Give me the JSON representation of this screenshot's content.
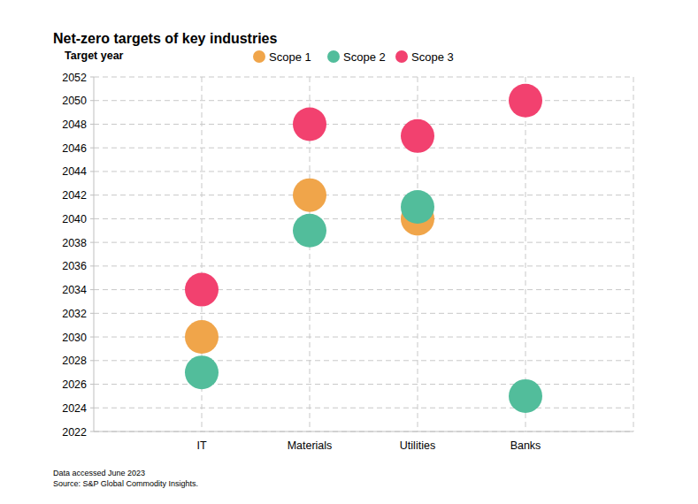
{
  "chart_data": {
    "type": "scatter",
    "title": "Net-zero targets of key industries",
    "y_label": "Target year",
    "notes": [
      "Data accessed June 2023",
      "Source: S&P Global Commodity Insights."
    ],
    "categories": [
      "IT",
      "Materials",
      "Utilities",
      "Banks"
    ],
    "series": [
      {
        "name": "Scope 1",
        "color": "#f0a54a",
        "values": [
          2030,
          2042,
          2040,
          null
        ]
      },
      {
        "name": "Scope 2",
        "color": "#52bd9b",
        "values": [
          2027,
          2039,
          2041,
          2025
        ]
      },
      {
        "name": "Scope 3",
        "color": "#f2416f",
        "values": [
          2034,
          2048,
          2047,
          2050
        ]
      }
    ],
    "ylim": [
      2022,
      2052
    ],
    "yticks": [
      2022,
      2024,
      2026,
      2028,
      2030,
      2032,
      2034,
      2036,
      2038,
      2040,
      2042,
      2044,
      2046,
      2048,
      2050,
      2052
    ],
    "grid": true,
    "legend": "top",
    "marker": "circle"
  }
}
